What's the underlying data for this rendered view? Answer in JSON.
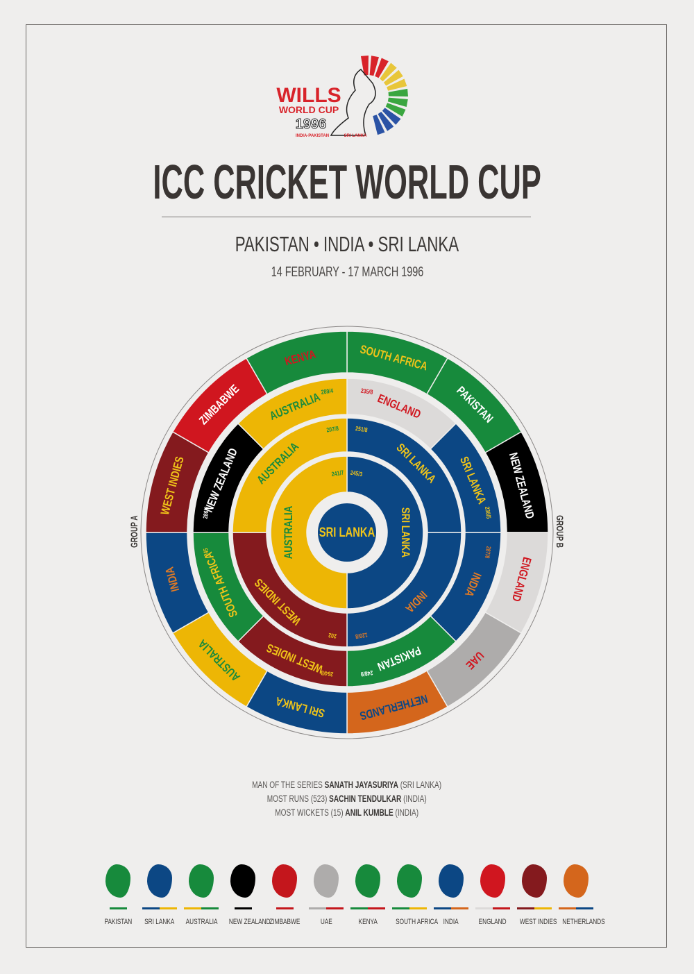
{
  "logo": {
    "line1": "WILLS",
    "line2": "WORLD CUP",
    "year": "1996",
    "hosts_left": "INDIA-PAKISTAN",
    "hosts_right": "SRI LANKA",
    "fan_colors": [
      "#d8232a",
      "#e8c63a",
      "#3aa640",
      "#2b53a5"
    ]
  },
  "header": {
    "title": "ICC CRICKET WORLD CUP",
    "hosts": "PAKISTAN • INDIA • SRI LANKA",
    "dates": "14 FEBRUARY - 17 MARCH 1996"
  },
  "teams": {
    "PAKISTAN": {
      "bg": "#178a3c",
      "fg": "#ffffff"
    },
    "SRI LANKA": {
      "bg": "#0c4784",
      "fg": "#f0c419"
    },
    "AUSTRALIA": {
      "bg": "#edb605",
      "fg": "#178a3c"
    },
    "NEW ZEALAND": {
      "bg": "#000000",
      "fg": "#ffffff"
    },
    "ZIMBABWE": {
      "bg": "#d0161f",
      "fg": "#ffffff"
    },
    "UAE": {
      "bg": "#aeacab",
      "fg": "#d0161f"
    },
    "KENYA": {
      "bg": "#178a3c",
      "fg": "#d0161f"
    },
    "SOUTH AFRICA": {
      "bg": "#178a3c",
      "fg": "#f0c419"
    },
    "INDIA": {
      "bg": "#0c4784",
      "fg": "#e07a25"
    },
    "ENGLAND": {
      "bg": "#dcdad9",
      "fg": "#d0161f"
    },
    "WEST INDIES": {
      "bg": "#841a1e",
      "fg": "#f0c419"
    },
    "NETHERLANDS": {
      "bg": "#d4661c",
      "fg": "#0c4784"
    }
  },
  "diagram": {
    "group_a_label": "GROUP A",
    "group_b_label": "GROUP B",
    "group_stage": [
      "SOUTH AFRICA",
      "PAKISTAN",
      "NEW ZEALAND",
      "ENGLAND",
      "UAE",
      "NETHERLANDS",
      "SRI LANKA",
      "AUSTRALIA",
      "INDIA",
      "WEST INDIES",
      "ZIMBABWE",
      "KENYA"
    ],
    "quarter_finals": [
      {
        "team": "ENGLAND",
        "score": "235/8"
      },
      {
        "team": "SRI LANKA",
        "score": "236/5"
      },
      {
        "team": "INDIA",
        "score": "287/8"
      },
      {
        "team": "PAKISTAN",
        "score": "248/9"
      },
      {
        "team": "WEST INDIES",
        "score": "264/8"
      },
      {
        "team": "SOUTH AFRICA",
        "score": "245"
      },
      {
        "team": "NEW ZEALAND",
        "score": "286/9"
      },
      {
        "team": "AUSTRALIA",
        "score": "289/4"
      }
    ],
    "semi_finals": [
      {
        "team": "SRI LANKA",
        "score": "251/8"
      },
      {
        "team": "INDIA",
        "score": "120/8"
      },
      {
        "team": "WEST INDIES",
        "score": "202"
      },
      {
        "team": "AUSTRALIA",
        "score": "207/8"
      }
    ],
    "final": [
      {
        "team": "SRI LANKA",
        "score": "245/3"
      },
      {
        "team": "AUSTRALIA",
        "score": "241/7"
      }
    ],
    "winner": "SRI LANKA"
  },
  "awards": [
    {
      "label": "MAN OF THE SERIES",
      "stat": "",
      "name": "SANATH JAYASURIYA",
      "country": "(SRI LANKA)"
    },
    {
      "label": "MOST RUNS",
      "stat": "(523)",
      "name": "SACHIN TENDULKAR",
      "country": "(INDIA)"
    },
    {
      "label": "MOST WICKETS",
      "stat": "(15)",
      "name": "ANIL KUMBLE",
      "country": "(INDIA)"
    }
  ],
  "legend": [
    {
      "name": "PAKISTAN",
      "shape": "#178a3c",
      "bars": [
        "#178a3c"
      ]
    },
    {
      "name": "SRI LANKA",
      "shape": "#0c4784",
      "bars": [
        "#0c4784",
        "#edb605"
      ]
    },
    {
      "name": "AUSTRALIA",
      "shape": "#178a3c",
      "bars": [
        "#edb605",
        "#178a3c"
      ]
    },
    {
      "name": "NEW ZEALAND",
      "shape": "#000000",
      "bars": [
        "#000000"
      ]
    },
    {
      "name": "ZIMBABWE",
      "shape": "#c4161c",
      "bars": [
        "#c4161c"
      ]
    },
    {
      "name": "UAE",
      "shape": "#aeacab",
      "bars": [
        "#aeacab",
        "#c4161c"
      ]
    },
    {
      "name": "KENYA",
      "shape": "#178a3c",
      "bars": [
        "#178a3c",
        "#c4161c"
      ]
    },
    {
      "name": "SOUTH AFRICA",
      "shape": "#178a3c",
      "bars": [
        "#178a3c",
        "#edb605"
      ]
    },
    {
      "name": "INDIA",
      "shape": "#0c4784",
      "bars": [
        "#0c4784",
        "#d4661c"
      ]
    },
    {
      "name": "ENGLAND",
      "shape": "#d0161f",
      "bars": [
        "#dcdad9",
        "#c4161c"
      ]
    },
    {
      "name": "WEST INDIES",
      "shape": "#841a1e",
      "bars": [
        "#841a1e",
        "#edb605"
      ]
    },
    {
      "name": "NETHERLANDS",
      "shape": "#d4661c",
      "bars": [
        "#d4661c",
        "#0c4784"
      ]
    }
  ]
}
